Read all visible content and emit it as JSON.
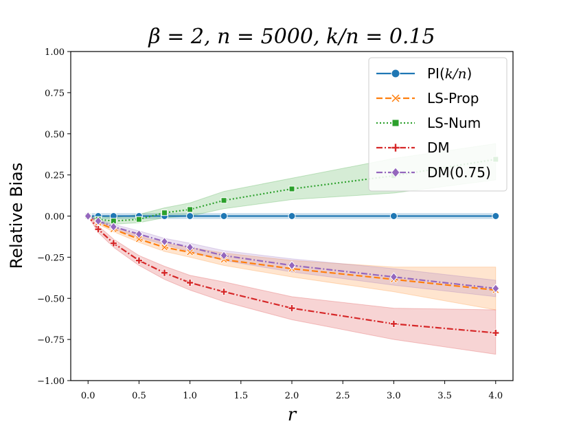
{
  "chart_data": {
    "type": "line",
    "title": "β = 2, n = 5000, k/n = 0.15",
    "xlabel": "r",
    "ylabel": "Relative Bias",
    "xlim": [
      -0.17,
      4.17
    ],
    "ylim": [
      -1.0,
      1.0
    ],
    "xticks": [
      0.0,
      0.5,
      1.0,
      1.5,
      2.0,
      2.5,
      3.0,
      3.5,
      4.0
    ],
    "xtick_labels": [
      "0.0",
      "0.5",
      "1.0",
      "1.5",
      "2.0",
      "2.5",
      "3.0",
      "3.5",
      "4.0"
    ],
    "yticks": [
      1.0,
      0.75,
      0.5,
      0.25,
      0.0,
      -0.25,
      -0.5,
      -0.75,
      -1.0
    ],
    "ytick_labels": [
      "1.00",
      "0.75",
      "0.50",
      "0.25",
      "0.00",
      "−0.25",
      "−0.50",
      "−0.75",
      "−1.00"
    ],
    "legend_position": "top-right",
    "series": [
      {
        "name": "PI(k/n)",
        "legend_main": "PI(",
        "legend_italic": "k/n",
        "legend_tail": ")",
        "color": "#1f77b4",
        "dash": "",
        "marker": "circle",
        "x": [
          0,
          0.1,
          0.25,
          0.5,
          0.75,
          1.0,
          1.333,
          2.0,
          3.0,
          4.0
        ],
        "y": [
          0,
          0,
          0,
          0,
          0,
          0,
          0,
          0,
          0,
          0
        ],
        "lower": [
          -0.015,
          -0.015,
          -0.015,
          -0.015,
          -0.015,
          -0.015,
          -0.015,
          -0.015,
          -0.015,
          -0.015
        ],
        "upper": [
          0.015,
          0.015,
          0.015,
          0.015,
          0.015,
          0.015,
          0.015,
          0.015,
          0.015,
          0.015
        ]
      },
      {
        "name": "LS-Prop",
        "color": "#ff7f0e",
        "dash": "9,4",
        "marker": "x",
        "x": [
          0,
          0.1,
          0.25,
          0.5,
          0.75,
          1.0,
          1.333,
          2.0,
          3.0,
          4.0
        ],
        "y": [
          0,
          -0.04,
          -0.08,
          -0.14,
          -0.19,
          -0.22,
          -0.265,
          -0.32,
          -0.385,
          -0.45
        ],
        "lower": [
          0,
          -0.05,
          -0.095,
          -0.16,
          -0.215,
          -0.25,
          -0.3,
          -0.37,
          -0.46,
          -0.57
        ],
        "upper": [
          0,
          -0.03,
          -0.065,
          -0.12,
          -0.165,
          -0.19,
          -0.225,
          -0.27,
          -0.31,
          -0.31
        ]
      },
      {
        "name": "LS-Num",
        "color": "#2ca02c",
        "dash": "2,3",
        "marker": "square",
        "x": [
          0,
          0.1,
          0.25,
          0.5,
          0.75,
          1.0,
          1.333,
          2.0,
          3.0,
          4.0
        ],
        "y": [
          0,
          -0.02,
          -0.03,
          -0.02,
          0.02,
          0.04,
          0.095,
          0.165,
          0.245,
          0.345
        ],
        "lower": [
          0,
          -0.04,
          -0.05,
          -0.04,
          -0.01,
          0.0,
          0.045,
          0.1,
          0.14,
          0.22
        ],
        "upper": [
          0,
          0.0,
          -0.01,
          0.01,
          0.05,
          0.08,
          0.15,
          0.23,
          0.35,
          0.44
        ]
      },
      {
        "name": "DM",
        "color": "#d62728",
        "dash": "9,3,2,3",
        "marker": "plus",
        "x": [
          0,
          0.1,
          0.25,
          0.5,
          0.75,
          1.0,
          1.333,
          2.0,
          3.0,
          4.0
        ],
        "y": [
          0,
          -0.08,
          -0.165,
          -0.27,
          -0.345,
          -0.405,
          -0.46,
          -0.56,
          -0.655,
          -0.71
        ],
        "lower": [
          0,
          -0.1,
          -0.19,
          -0.3,
          -0.385,
          -0.45,
          -0.52,
          -0.63,
          -0.75,
          -0.84
        ],
        "upper": [
          0,
          -0.06,
          -0.14,
          -0.24,
          -0.305,
          -0.36,
          -0.4,
          -0.49,
          -0.56,
          -0.57
        ]
      },
      {
        "name": "DM(0.75)",
        "color": "#9467bd",
        "dash": "9,3,2,3",
        "marker": "diamond",
        "x": [
          0,
          0.1,
          0.25,
          0.5,
          0.75,
          1.0,
          1.333,
          2.0,
          3.0,
          4.0
        ],
        "y": [
          0,
          -0.03,
          -0.065,
          -0.11,
          -0.155,
          -0.19,
          -0.24,
          -0.3,
          -0.37,
          -0.44
        ],
        "lower": [
          0,
          -0.04,
          -0.08,
          -0.13,
          -0.175,
          -0.215,
          -0.27,
          -0.34,
          -0.42,
          -0.49
        ],
        "upper": [
          0,
          -0.02,
          -0.05,
          -0.09,
          -0.135,
          -0.165,
          -0.21,
          -0.26,
          -0.32,
          -0.39
        ]
      }
    ]
  }
}
